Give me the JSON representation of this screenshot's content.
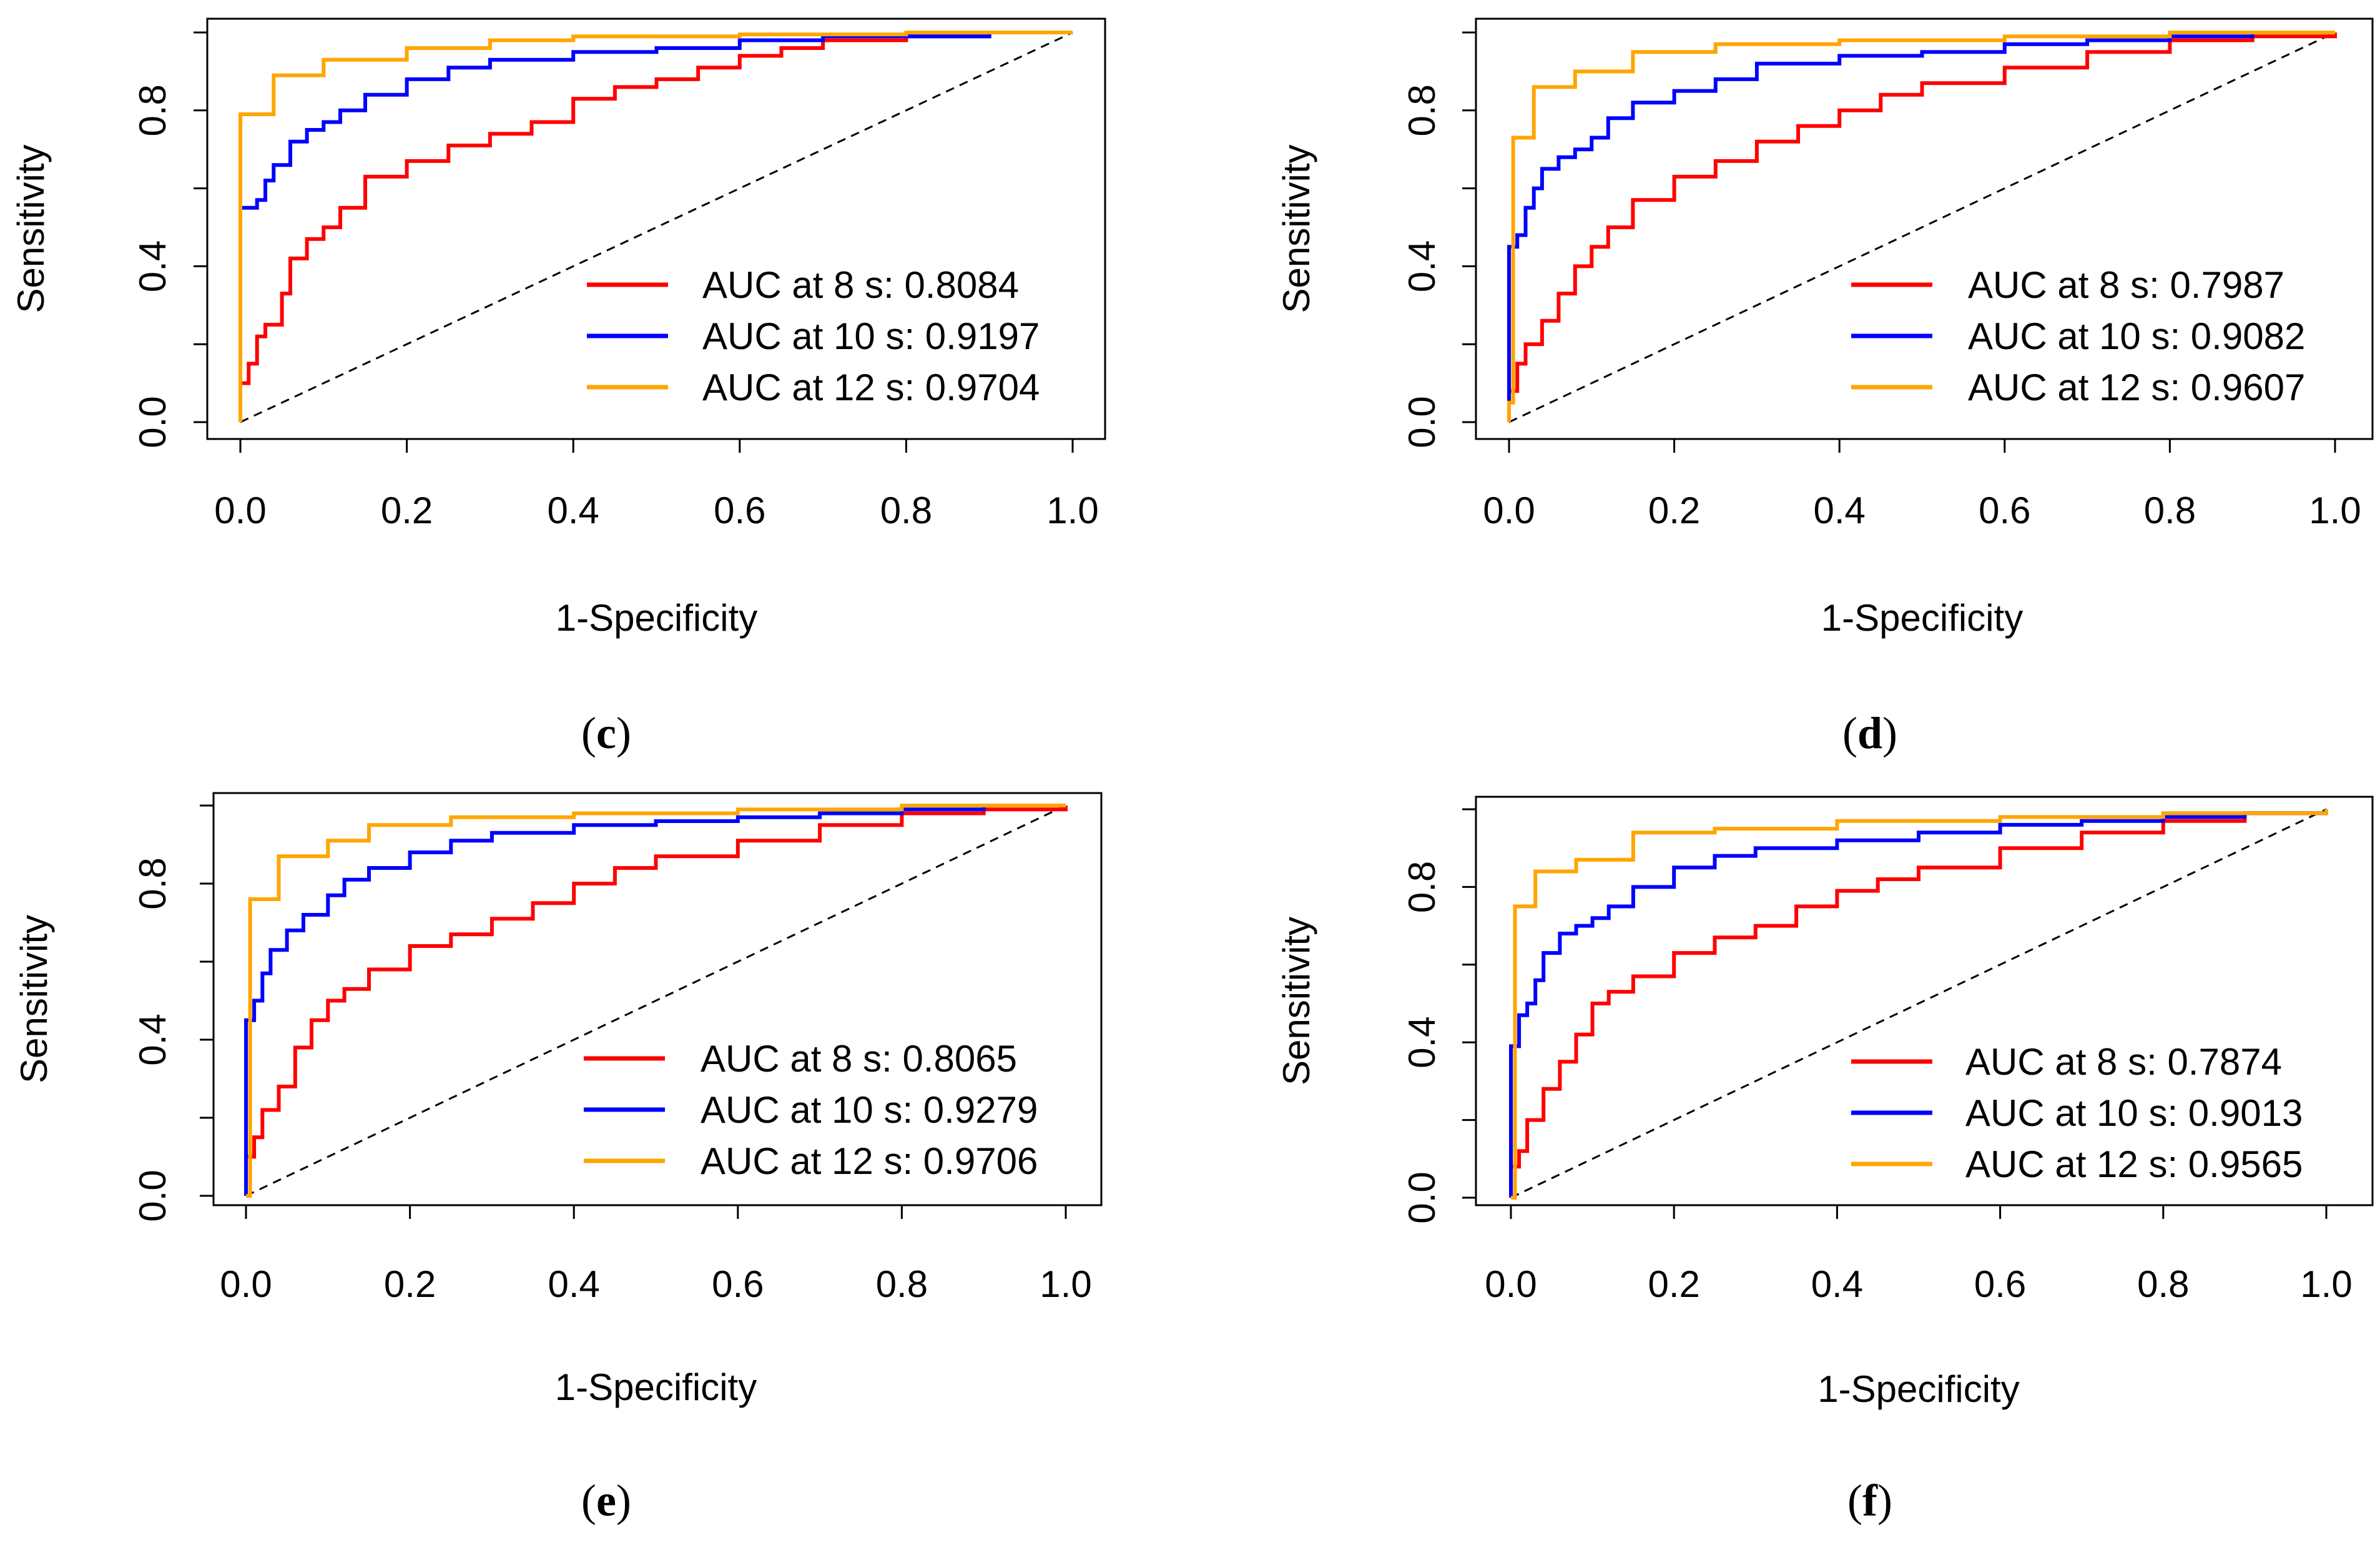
{
  "colors": {
    "auc8": "#ff0000",
    "auc10": "#0000ff",
    "auc12": "#ffa500",
    "axis": "#000000",
    "diag": "#000000"
  },
  "chart_data": [
    {
      "type": "line",
      "panel": "c",
      "xlabel": "1-Specificity",
      "ylabel": "Sensitivity",
      "xlim": [
        0,
        1
      ],
      "ylim": [
        0,
        1
      ],
      "xticks": [
        "0.0",
        "0.2",
        "0.4",
        "0.6",
        "0.8",
        "1.0"
      ],
      "yticks": [
        "0.0",
        "0.4",
        "0.8"
      ],
      "legend_position": "bottom-right",
      "series": [
        {
          "name": "AUC at 8 s",
          "auc": "0.8084",
          "legend": "AUC at 8 s: 0.8084",
          "color": "#ff0000",
          "x": [
            0,
            0.01,
            0.02,
            0.03,
            0.05,
            0.06,
            0.08,
            0.1,
            0.12,
            0.15,
            0.2,
            0.25,
            0.3,
            0.35,
            0.4,
            0.45,
            0.5,
            0.55,
            0.6,
            0.65,
            0.7,
            0.8,
            0.9,
            1.0
          ],
          "y": [
            0.1,
            0.15,
            0.22,
            0.25,
            0.33,
            0.42,
            0.47,
            0.5,
            0.55,
            0.63,
            0.67,
            0.71,
            0.74,
            0.77,
            0.83,
            0.86,
            0.88,
            0.91,
            0.94,
            0.96,
            0.98,
            0.99,
            1.0,
            1.0
          ]
        },
        {
          "name": "AUC at 10 s",
          "auc": "0.9197",
          "legend": "AUC at 10 s: 0.9197",
          "color": "#0000ff",
          "x": [
            0,
            0.01,
            0.02,
            0.03,
            0.04,
            0.06,
            0.08,
            0.1,
            0.12,
            0.15,
            0.2,
            0.25,
            0.3,
            0.4,
            0.5,
            0.6,
            0.7,
            0.8,
            0.9,
            1.0
          ],
          "y": [
            0.55,
            0.55,
            0.57,
            0.62,
            0.66,
            0.72,
            0.75,
            0.77,
            0.8,
            0.84,
            0.88,
            0.91,
            0.93,
            0.95,
            0.96,
            0.98,
            0.99,
            0.99,
            1.0,
            1.0
          ]
        },
        {
          "name": "AUC at 12 s",
          "auc": "0.9704",
          "legend": "AUC at 12 s: 0.9704",
          "color": "#ffa500",
          "x": [
            0,
            0.04,
            0.1,
            0.2,
            0.3,
            0.4,
            0.6,
            0.8,
            1.0
          ],
          "y": [
            0.79,
            0.89,
            0.93,
            0.96,
            0.98,
            0.99,
            0.995,
            1.0,
            1.0
          ]
        }
      ]
    },
    {
      "type": "line",
      "panel": "d",
      "xlabel": "1-Specificity",
      "ylabel": "Sensitivity",
      "xlim": [
        0,
        1
      ],
      "ylim": [
        0,
        1
      ],
      "xticks": [
        "0.0",
        "0.2",
        "0.4",
        "0.6",
        "0.8",
        "1.0"
      ],
      "yticks": [
        "0.0",
        "0.4",
        "0.8"
      ],
      "legend_position": "bottom-right",
      "series": [
        {
          "name": "AUC at 8 s",
          "auc": "0.7987",
          "legend": "AUC at 8 s: 0.7987",
          "color": "#ff0000",
          "x": [
            0,
            0.01,
            0.02,
            0.04,
            0.06,
            0.08,
            0.1,
            0.12,
            0.15,
            0.2,
            0.25,
            0.3,
            0.35,
            0.4,
            0.45,
            0.5,
            0.6,
            0.7,
            0.8,
            0.9,
            1.0
          ],
          "y": [
            0.08,
            0.15,
            0.2,
            0.26,
            0.33,
            0.4,
            0.45,
            0.5,
            0.57,
            0.63,
            0.67,
            0.72,
            0.76,
            0.8,
            0.84,
            0.87,
            0.91,
            0.95,
            0.98,
            0.99,
            1.0
          ]
        },
        {
          "name": "AUC at 10 s",
          "auc": "0.9082",
          "legend": "AUC at 10 s: 0.9082",
          "color": "#0000ff",
          "x": [
            0,
            0.01,
            0.02,
            0.03,
            0.04,
            0.06,
            0.08,
            0.1,
            0.12,
            0.15,
            0.2,
            0.25,
            0.3,
            0.4,
            0.5,
            0.6,
            0.7,
            0.8,
            0.9,
            1.0
          ],
          "y": [
            0.45,
            0.48,
            0.55,
            0.6,
            0.65,
            0.68,
            0.7,
            0.73,
            0.78,
            0.82,
            0.85,
            0.88,
            0.92,
            0.94,
            0.95,
            0.97,
            0.98,
            0.99,
            1.0,
            1.0
          ]
        },
        {
          "name": "AUC at 12 s",
          "auc": "0.9607",
          "legend": "AUC at 12 s: 0.9607",
          "color": "#ffa500",
          "x": [
            0,
            0.005,
            0.03,
            0.08,
            0.15,
            0.25,
            0.4,
            0.6,
            0.8,
            1.0
          ],
          "y": [
            0.05,
            0.73,
            0.86,
            0.9,
            0.95,
            0.97,
            0.98,
            0.99,
            1.0,
            1.0
          ]
        }
      ]
    },
    {
      "type": "line",
      "panel": "e",
      "xlabel": "1-Specificity",
      "ylabel": "Sensitivity",
      "xlim": [
        0,
        1
      ],
      "ylim": [
        0,
        1
      ],
      "xticks": [
        "0.0",
        "0.2",
        "0.4",
        "0.6",
        "0.8",
        "1.0"
      ],
      "yticks": [
        "0.0",
        "0.4",
        "0.8"
      ],
      "legend_position": "bottom-right",
      "series": [
        {
          "name": "AUC at 8 s",
          "auc": "0.8065",
          "legend": "AUC at 8 s: 0.8065",
          "color": "#ff0000",
          "x": [
            0,
            0.01,
            0.02,
            0.04,
            0.06,
            0.08,
            0.1,
            0.12,
            0.15,
            0.2,
            0.25,
            0.3,
            0.35,
            0.4,
            0.45,
            0.5,
            0.6,
            0.7,
            0.8,
            0.9,
            1.0
          ],
          "y": [
            0.1,
            0.15,
            0.22,
            0.28,
            0.38,
            0.45,
            0.5,
            0.53,
            0.58,
            0.64,
            0.67,
            0.71,
            0.75,
            0.8,
            0.84,
            0.87,
            0.91,
            0.95,
            0.98,
            0.99,
            1.0
          ]
        },
        {
          "name": "AUC at 10 s",
          "auc": "0.9279",
          "legend": "AUC at 10 s: 0.9279",
          "color": "#0000ff",
          "x": [
            0,
            0.01,
            0.02,
            0.03,
            0.05,
            0.07,
            0.1,
            0.12,
            0.15,
            0.2,
            0.25,
            0.3,
            0.4,
            0.5,
            0.6,
            0.7,
            0.8,
            0.9,
            1.0
          ],
          "y": [
            0.45,
            0.5,
            0.57,
            0.63,
            0.68,
            0.72,
            0.77,
            0.81,
            0.84,
            0.88,
            0.91,
            0.93,
            0.95,
            0.96,
            0.97,
            0.98,
            0.99,
            1.0,
            1.0
          ]
        },
        {
          "name": "AUC at 12 s",
          "auc": "0.9706",
          "legend": "AUC at 12 s: 0.9706",
          "color": "#ffa500",
          "x": [
            0,
            0.005,
            0.04,
            0.1,
            0.15,
            0.25,
            0.4,
            0.6,
            0.8,
            1.0
          ],
          "y": [
            0.0,
            0.76,
            0.87,
            0.91,
            0.95,
            0.97,
            0.98,
            0.99,
            1.0,
            1.0
          ]
        }
      ]
    },
    {
      "type": "line",
      "panel": "f",
      "xlabel": "1-Specificity",
      "ylabel": "Sensitivity",
      "xlim": [
        0,
        1
      ],
      "ylim": [
        0,
        1
      ],
      "xticks": [
        "0.0",
        "0.2",
        "0.4",
        "0.6",
        "0.8",
        "1.0"
      ],
      "yticks": [
        "0.0",
        "0.4",
        "0.8"
      ],
      "legend_position": "bottom-right",
      "series": [
        {
          "name": "AUC at 8 s",
          "auc": "0.7874",
          "legend": "AUC at 8 s: 0.7874",
          "color": "#ff0000",
          "x": [
            0,
            0.01,
            0.02,
            0.04,
            0.06,
            0.08,
            0.1,
            0.12,
            0.15,
            0.2,
            0.25,
            0.3,
            0.35,
            0.4,
            0.45,
            0.5,
            0.6,
            0.7,
            0.8,
            0.9,
            1.0
          ],
          "y": [
            0.08,
            0.12,
            0.2,
            0.28,
            0.35,
            0.42,
            0.5,
            0.53,
            0.57,
            0.63,
            0.67,
            0.7,
            0.75,
            0.79,
            0.82,
            0.85,
            0.9,
            0.94,
            0.97,
            0.99,
            1.0
          ]
        },
        {
          "name": "AUC at 10 s",
          "auc": "0.9013",
          "legend": "AUC at 10 s: 0.9013",
          "color": "#0000ff",
          "x": [
            0,
            0.01,
            0.02,
            0.03,
            0.04,
            0.06,
            0.08,
            0.1,
            0.12,
            0.15,
            0.2,
            0.25,
            0.3,
            0.4,
            0.5,
            0.6,
            0.7,
            0.8,
            0.9,
            1.0
          ],
          "y": [
            0.39,
            0.47,
            0.5,
            0.56,
            0.63,
            0.68,
            0.7,
            0.72,
            0.75,
            0.8,
            0.85,
            0.88,
            0.9,
            0.92,
            0.94,
            0.96,
            0.97,
            0.98,
            0.99,
            1.0
          ]
        },
        {
          "name": "AUC at 12 s",
          "auc": "0.9565",
          "legend": "AUC at 12 s: 0.9565",
          "color": "#ffa500",
          "x": [
            0,
            0.005,
            0.03,
            0.08,
            0.15,
            0.25,
            0.4,
            0.6,
            0.8,
            1.0
          ],
          "y": [
            0.0,
            0.75,
            0.84,
            0.87,
            0.94,
            0.95,
            0.97,
            0.98,
            0.99,
            1.0
          ]
        }
      ]
    }
  ]
}
